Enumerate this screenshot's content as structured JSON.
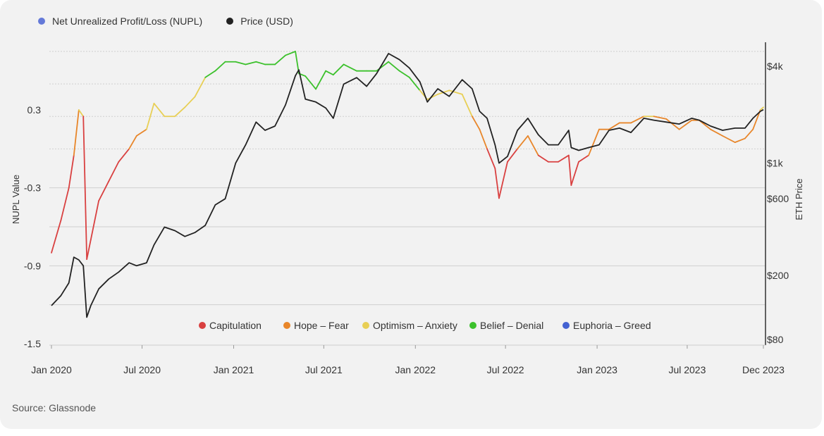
{
  "source": "Source: Glassnode",
  "colors": {
    "capitulation": "#d94040",
    "hope_fear": "#e8862a",
    "optimism_anxiety": "#e8cf55",
    "belief_denial": "#3cc12c",
    "euphoria_greed": "#4462d2",
    "price": "#222222",
    "nupl_legend": "#6479d8",
    "grid": "#d8d8d8"
  },
  "chart_data": {
    "type": "line",
    "title": "",
    "ylabel": "NUPL Value",
    "y2label": "ETH Price",
    "legend_top": [
      {
        "name": "Net Unrealized Profit/Loss (NUPL)",
        "color": "#6479d8"
      },
      {
        "name": "Price (USD)",
        "color": "#222222"
      }
    ],
    "zones": [
      {
        "name": "Capitulation",
        "color": "#d94040",
        "range": [
          -1.5,
          0
        ]
      },
      {
        "name": "Hope – Fear",
        "color": "#e8862a",
        "range": [
          0,
          0.25
        ]
      },
      {
        "name": "Optimism – Anxiety",
        "color": "#e8cf55",
        "range": [
          0.25,
          0.5
        ]
      },
      {
        "name": "Belief – Denial",
        "color": "#3cc12c",
        "range": [
          0.5,
          0.75
        ]
      },
      {
        "name": "Euphoria – Greed",
        "color": "#4462d2",
        "range": [
          0.75,
          1
        ]
      }
    ],
    "xlim": [
      "2020-01-01",
      "2023-12-01"
    ],
    "x_ticks": [
      "Jan 2020",
      "Jul 2020",
      "Jan 2021",
      "Jul 2021",
      "Jan 2022",
      "Jul 2022",
      "Jan 2023",
      "Jul 2023",
      "Dec 2023"
    ],
    "y_ticks": [
      "0.3",
      "-0.3",
      "-0.9",
      "-1.5"
    ],
    "y2_ticks": [
      "$4k",
      "$1k",
      "$600",
      "$200",
      "$80"
    ],
    "ylim": [
      -1.5,
      0.75
    ],
    "y2lim": [
      80,
      5000
    ],
    "y2_scale": "log",
    "series": [
      {
        "name": "Net Unrealized Profit/Loss (NUPL)",
        "x": [
          "2020-01-01",
          "2020-01-20",
          "2020-02-05",
          "2020-02-15",
          "2020-02-25",
          "2020-03-05",
          "2020-03-12",
          "2020-03-20",
          "2020-04-05",
          "2020-04-25",
          "2020-05-15",
          "2020-06-05",
          "2020-06-20",
          "2020-07-10",
          "2020-07-25",
          "2020-08-15",
          "2020-09-05",
          "2020-09-25",
          "2020-10-15",
          "2020-11-05",
          "2020-11-25",
          "2020-12-15",
          "2021-01-05",
          "2021-01-25",
          "2021-02-15",
          "2021-03-05",
          "2021-03-25",
          "2021-04-15",
          "2021-05-05",
          "2021-05-12",
          "2021-05-25",
          "2021-06-15",
          "2021-07-05",
          "2021-07-20",
          "2021-08-10",
          "2021-09-05",
          "2021-09-25",
          "2021-10-15",
          "2021-11-08",
          "2021-11-30",
          "2021-12-20",
          "2022-01-10",
          "2022-01-25",
          "2022-02-15",
          "2022-03-10",
          "2022-04-05",
          "2022-04-25",
          "2022-05-10",
          "2022-05-25",
          "2022-06-10",
          "2022-06-18",
          "2022-07-05",
          "2022-07-25",
          "2022-08-15",
          "2022-09-05",
          "2022-09-25",
          "2022-10-15",
          "2022-11-05",
          "2022-11-10",
          "2022-11-25",
          "2022-12-15",
          "2023-01-05",
          "2023-01-25",
          "2023-02-15",
          "2023-03-10",
          "2023-04-05",
          "2023-04-25",
          "2023-05-20",
          "2023-06-15",
          "2023-07-10",
          "2023-07-25",
          "2023-08-17",
          "2023-09-10",
          "2023-10-05",
          "2023-10-25",
          "2023-11-10",
          "2023-11-25",
          "2023-12-01"
        ],
        "values": [
          -0.8,
          -0.55,
          -0.3,
          -0.05,
          0.3,
          0.25,
          -0.85,
          -0.7,
          -0.4,
          -0.25,
          -0.1,
          0.0,
          0.1,
          0.15,
          0.35,
          0.25,
          0.25,
          0.32,
          0.4,
          0.55,
          0.6,
          0.67,
          0.67,
          0.65,
          0.67,
          0.65,
          0.65,
          0.72,
          0.75,
          0.58,
          0.56,
          0.46,
          0.6,
          0.57,
          0.65,
          0.6,
          0.6,
          0.6,
          0.67,
          0.6,
          0.55,
          0.45,
          0.38,
          0.42,
          0.45,
          0.42,
          0.25,
          0.15,
          0.0,
          -0.15,
          -0.38,
          -0.1,
          0.0,
          0.1,
          -0.05,
          -0.1,
          -0.1,
          -0.05,
          -0.28,
          -0.1,
          -0.05,
          0.15,
          0.15,
          0.2,
          0.2,
          0.25,
          0.25,
          0.23,
          0.15,
          0.22,
          0.22,
          0.15,
          0.1,
          0.05,
          0.08,
          0.15,
          0.3,
          0.32
        ]
      },
      {
        "name": "Price (USD)",
        "x": [
          "2020-01-01",
          "2020-01-20",
          "2020-02-05",
          "2020-02-15",
          "2020-02-25",
          "2020-03-05",
          "2020-03-12",
          "2020-03-20",
          "2020-04-05",
          "2020-04-25",
          "2020-05-15",
          "2020-06-05",
          "2020-06-20",
          "2020-07-10",
          "2020-07-25",
          "2020-08-15",
          "2020-09-05",
          "2020-09-25",
          "2020-10-15",
          "2020-11-05",
          "2020-11-25",
          "2020-12-15",
          "2021-01-05",
          "2021-01-25",
          "2021-02-15",
          "2021-03-05",
          "2021-03-25",
          "2021-04-15",
          "2021-05-05",
          "2021-05-12",
          "2021-05-25",
          "2021-06-15",
          "2021-07-05",
          "2021-07-20",
          "2021-08-10",
          "2021-09-05",
          "2021-09-25",
          "2021-10-15",
          "2021-11-08",
          "2021-11-30",
          "2021-12-20",
          "2022-01-10",
          "2022-01-25",
          "2022-02-15",
          "2022-03-10",
          "2022-04-05",
          "2022-04-25",
          "2022-05-10",
          "2022-05-25",
          "2022-06-10",
          "2022-06-18",
          "2022-07-05",
          "2022-07-25",
          "2022-08-15",
          "2022-09-05",
          "2022-09-25",
          "2022-10-15",
          "2022-11-05",
          "2022-11-10",
          "2022-11-25",
          "2022-12-15",
          "2023-01-05",
          "2023-01-25",
          "2023-02-15",
          "2023-03-10",
          "2023-04-05",
          "2023-04-25",
          "2023-05-20",
          "2023-06-15",
          "2023-07-10",
          "2023-07-25",
          "2023-08-17",
          "2023-09-10",
          "2023-10-05",
          "2023-10-25",
          "2023-11-10",
          "2023-11-25",
          "2023-12-01"
        ],
        "values": [
          130,
          150,
          180,
          260,
          250,
          230,
          110,
          130,
          165,
          190,
          210,
          240,
          230,
          240,
          310,
          400,
          380,
          350,
          370,
          410,
          550,
          600,
          1000,
          1300,
          1800,
          1600,
          1700,
          2300,
          3500,
          3800,
          2500,
          2400,
          2200,
          1900,
          3100,
          3400,
          3000,
          3600,
          4800,
          4400,
          3900,
          3200,
          2400,
          2900,
          2600,
          3300,
          2900,
          2100,
          1900,
          1300,
          1000,
          1100,
          1600,
          1900,
          1500,
          1300,
          1300,
          1600,
          1250,
          1200,
          1250,
          1300,
          1600,
          1650,
          1550,
          1900,
          1850,
          1800,
          1750,
          1900,
          1850,
          1700,
          1600,
          1650,
          1650,
          1900,
          2100,
          2150
        ]
      }
    ]
  }
}
